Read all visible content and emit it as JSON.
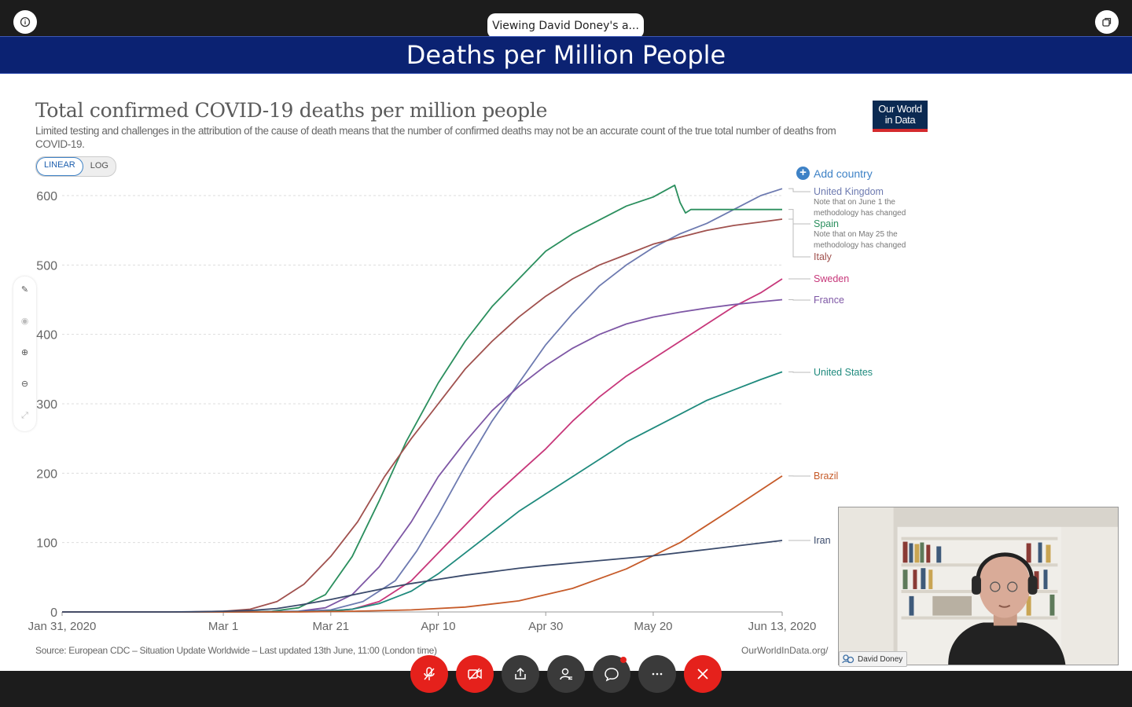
{
  "top_bar": {
    "viewing_label": "Viewing David Doney's a..."
  },
  "slide": {
    "banner_title": "Deaths per Million People"
  },
  "owid_logo": {
    "line1": "Our World",
    "line2": "in Data"
  },
  "chart_controls": {
    "linear_label": "LINEAR",
    "log_label": "LOG",
    "add_country_label": "Add country"
  },
  "legend_notes": {
    "uk_note_1": "Note that on June 1 the",
    "uk_note_2": "methodology has changed",
    "spain_note_1": "Note that on May 25 the",
    "spain_note_2": "methodology has changed"
  },
  "chart_data": {
    "type": "line",
    "title": "Total confirmed COVID-19 deaths per million people",
    "subtitle": "Limited testing and challenges in the attribution of the cause of death means that the number of confirmed deaths may not be an accurate count of the true total number of deaths from COVID-19.",
    "x_ticks": [
      "Jan 31, 2020",
      "Mar 1",
      "Mar 21",
      "Apr 10",
      "Apr 30",
      "May 20",
      "Jun 13, 2020"
    ],
    "x_tick_days": [
      0,
      30,
      50,
      70,
      90,
      110,
      134
    ],
    "xlim": [
      "Jan 31, 2020",
      "Jun 13, 2020"
    ],
    "ylim": [
      0,
      600
    ],
    "y_ticks": [
      0,
      100,
      200,
      300,
      400,
      500,
      600
    ],
    "grid": true,
    "log_scale": false,
    "legend_placement": "right",
    "source": "Source: European CDC – Situation Update Worldwide – Last updated 13th June, 11:00 (London time)",
    "site": "OurWorldInData.org/",
    "series": [
      {
        "name": "United Kingdom",
        "color": "#6d7ab0",
        "x": [
          "Jan 31, 2020",
          "Mar 5",
          "Mar 15",
          "Mar 21",
          "Mar 27",
          "Apr 2",
          "Apr 6",
          "Apr 10",
          "Apr 15",
          "Apr 20",
          "Apr 25",
          "Apr 30",
          "May 5",
          "May 10",
          "May 15",
          "May 20",
          "May 25",
          "May 30",
          "Jun 4",
          "Jun 9",
          "Jun 13, 2020"
        ],
        "y": [
          0,
          0,
          1,
          3,
          15,
          45,
          88,
          140,
          210,
          275,
          330,
          385,
          430,
          470,
          500,
          525,
          545,
          560,
          580,
          600,
          610
        ]
      },
      {
        "name": "Spain",
        "color": "#2b8f5e",
        "x": [
          "Jan 31, 2020",
          "Mar 5",
          "Mar 10",
          "Mar 15",
          "Mar 20",
          "Mar 25",
          "Mar 30",
          "Apr 4",
          "Apr 10",
          "Apr 15",
          "Apr 20",
          "Apr 25",
          "Apr 30",
          "May 5",
          "May 10",
          "May 15",
          "May 20",
          "May 24",
          "May 25",
          "May 26",
          "May 27",
          "Jun 13, 2020"
        ],
        "y": [
          0,
          0,
          1,
          6,
          25,
          80,
          160,
          245,
          330,
          390,
          440,
          480,
          520,
          545,
          565,
          585,
          598,
          615,
          590,
          575,
          580,
          580
        ]
      },
      {
        "name": "Italy",
        "color": "#a0514e",
        "x": [
          "Jan 31, 2020",
          "Feb 23",
          "Mar 1",
          "Mar 6",
          "Mar 11",
          "Mar 16",
          "Mar 21",
          "Mar 26",
          "Mar 31",
          "Apr 5",
          "Apr 10",
          "Apr 15",
          "Apr 20",
          "Apr 25",
          "Apr 30",
          "May 5",
          "May 10",
          "May 15",
          "May 20",
          "May 25",
          "May 30",
          "Jun 4",
          "Jun 9",
          "Jun 13, 2020"
        ],
        "y": [
          0,
          0,
          1,
          4,
          15,
          40,
          80,
          130,
          195,
          250,
          300,
          350,
          390,
          425,
          455,
          480,
          500,
          515,
          530,
          540,
          550,
          557,
          562,
          566
        ]
      },
      {
        "name": "Sweden",
        "color": "#c7377a",
        "x": [
          "Jan 31, 2020",
          "Mar 10",
          "Mar 20",
          "Mar 25",
          "Mar 30",
          "Apr 5",
          "Apr 10",
          "Apr 15",
          "Apr 20",
          "Apr 25",
          "Apr 30",
          "May 5",
          "May 10",
          "May 15",
          "May 20",
          "May 25",
          "May 30",
          "Jun 4",
          "Jun 9",
          "Jun 13, 2020"
        ],
        "y": [
          0,
          0,
          1,
          4,
          15,
          45,
          85,
          125,
          165,
          200,
          235,
          275,
          310,
          340,
          365,
          390,
          415,
          440,
          460,
          480
        ]
      },
      {
        "name": "France",
        "color": "#7e57a5",
        "x": [
          "Jan 31, 2020",
          "Mar 5",
          "Mar 15",
          "Mar 20",
          "Mar 25",
          "Mar 30",
          "Apr 5",
          "Apr 10",
          "Apr 15",
          "Apr 20",
          "Apr 25",
          "Apr 30",
          "May 5",
          "May 10",
          "May 15",
          "May 20",
          "May 25",
          "May 30",
          "Jun 4",
          "Jun 9",
          "Jun 13, 2020"
        ],
        "y": [
          0,
          0,
          1,
          6,
          25,
          65,
          130,
          195,
          245,
          290,
          325,
          355,
          380,
          400,
          415,
          425,
          432,
          438,
          443,
          447,
          450
        ]
      },
      {
        "name": "United States",
        "color": "#1f8a7d",
        "x": [
          "Jan 31, 2020",
          "Mar 10",
          "Mar 20",
          "Mar 25",
          "Mar 30",
          "Apr 5",
          "Apr 10",
          "Apr 15",
          "Apr 20",
          "Apr 25",
          "Apr 30",
          "May 5",
          "May 10",
          "May 15",
          "May 20",
          "May 25",
          "May 30",
          "Jun 4",
          "Jun 9",
          "Jun 13, 2020"
        ],
        "y": [
          0,
          0,
          1,
          4,
          12,
          30,
          55,
          85,
          115,
          145,
          170,
          195,
          220,
          245,
          265,
          285,
          305,
          320,
          335,
          346
        ]
      },
      {
        "name": "Brazil",
        "color": "#c65b2a",
        "x": [
          "Jan 31, 2020",
          "Mar 15",
          "Mar 25",
          "Apr 5",
          "Apr 15",
          "Apr 25",
          "May 5",
          "May 15",
          "May 25",
          "Jun 4",
          "Jun 13, 2020"
        ],
        "y": [
          0,
          0,
          1,
          3,
          7,
          16,
          34,
          62,
          100,
          150,
          196
        ]
      },
      {
        "name": "Iran",
        "color": "#3a4a6b",
        "x": [
          "Jan 31, 2020",
          "Feb 20",
          "Feb 25",
          "Mar 1",
          "Mar 6",
          "Mar 11",
          "Mar 16",
          "Mar 21",
          "Mar 26",
          "Mar 31",
          "Apr 5",
          "Apr 10",
          "Apr 15",
          "Apr 20",
          "Apr 25",
          "Apr 30",
          "May 10",
          "May 20",
          "May 30",
          "Jun 13, 2020"
        ],
        "y": [
          0,
          0,
          0.3,
          1,
          2,
          5,
          11,
          18,
          26,
          34,
          41,
          47,
          53,
          58,
          63,
          67,
          74,
          81,
          90,
          103
        ]
      }
    ]
  },
  "video": {
    "participant_name": "David Doney"
  }
}
